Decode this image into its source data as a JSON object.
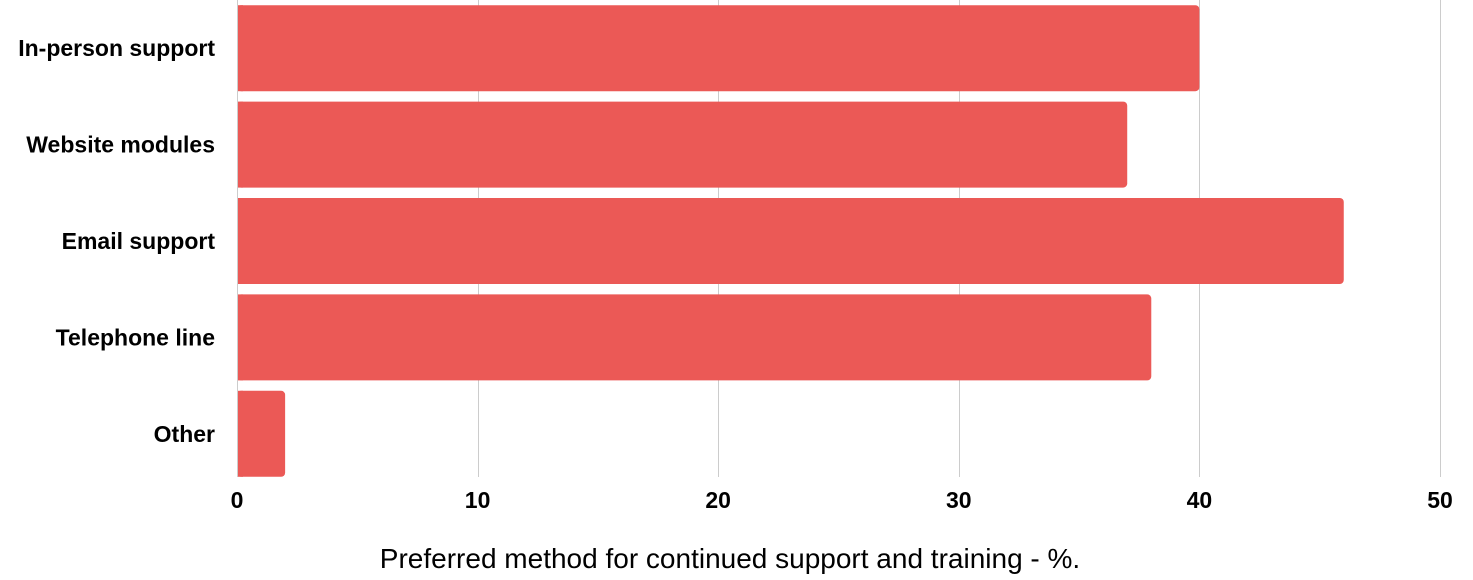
{
  "chart_data": {
    "type": "bar",
    "orientation": "horizontal",
    "categories": [
      "In-person support",
      "Website modules",
      "Email support",
      "Telephone line",
      "Other"
    ],
    "values": [
      40,
      37,
      46,
      38,
      2
    ],
    "xlabel": "Preferred method for continued support and training - %.",
    "ylabel": "",
    "xlim": [
      0,
      50
    ],
    "xticks": [
      "0",
      "10",
      "20",
      "30",
      "40",
      "50"
    ],
    "grid": true,
    "legend": "none",
    "bar_color": "#EB5956",
    "grid_color": "#CCCCCC"
  }
}
